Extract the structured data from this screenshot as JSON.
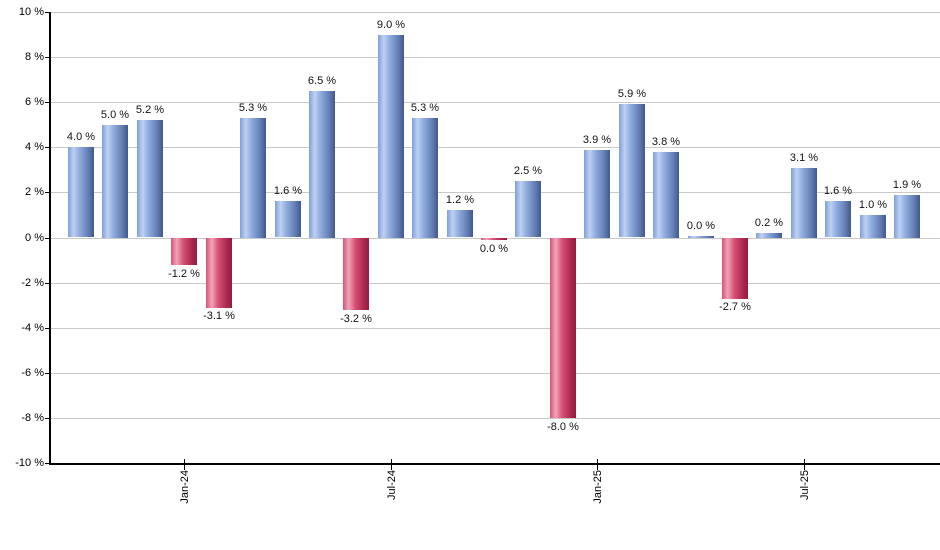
{
  "chart_data": {
    "type": "bar",
    "title": "",
    "xlabel": "",
    "ylabel": "",
    "ylim": [
      -10,
      10
    ],
    "grid": true,
    "legend": "none",
    "values": [
      4.0,
      5.0,
      5.2,
      -1.2,
      -3.1,
      5.3,
      1.6,
      6.5,
      -3.2,
      9.0,
      5.3,
      1.2,
      0.0,
      2.5,
      -8.0,
      3.9,
      5.9,
      3.8,
      0.0,
      -2.7,
      0.2,
      3.1,
      1.6,
      1.0,
      1.9
    ],
    "bar_labels": [
      "4.0 %",
      "5.0 %",
      "5.2 %",
      "-1.2 %",
      "-3.1 %",
      "5.3 %",
      "1.6 %",
      "6.5 %",
      "-3.2 %",
      "9.0 %",
      "5.3 %",
      "1.2 %",
      "0.0 %",
      "2.5 %",
      "-8.0 %",
      "3.9 %",
      "5.9 %",
      "3.8 %",
      "0.0 %",
      "-2.7 %",
      "0.2 %",
      "3.1 %",
      "1.6 %",
      "1.0 %",
      "1.9 %"
    ],
    "bar_colors": [
      "blue",
      "blue",
      "blue",
      "red",
      "red",
      "blue",
      "blue",
      "blue",
      "red",
      "blue",
      "blue",
      "blue",
      "red",
      "blue",
      "red",
      "blue",
      "blue",
      "blue",
      "blue",
      "red",
      "blue",
      "blue",
      "blue",
      "blue",
      "blue"
    ],
    "label_below": [
      false,
      false,
      false,
      true,
      true,
      false,
      false,
      false,
      true,
      false,
      false,
      false,
      true,
      false,
      true,
      false,
      false,
      false,
      false,
      true,
      false,
      false,
      false,
      false,
      false
    ],
    "y_ticks": [
      {
        "label": "10 %",
        "value": 10
      },
      {
        "label": "8 %",
        "value": 8
      },
      {
        "label": "6 %",
        "value": 6
      },
      {
        "label": "4 %",
        "value": 4
      },
      {
        "label": "2 %",
        "value": 2
      },
      {
        "label": "0 %",
        "value": 0
      },
      {
        "label": "-2 %",
        "value": -2
      },
      {
        "label": "-4 %",
        "value": -4
      },
      {
        "label": "-6 %",
        "value": -6
      },
      {
        "label": "-8 %",
        "value": -8
      },
      {
        "label": "-10 %",
        "value": -10
      }
    ],
    "x_ticks": [
      {
        "label": "Jan-24",
        "bar_index": 3
      },
      {
        "label": "Jul-24",
        "bar_index": 9
      },
      {
        "label": "Jan-25",
        "bar_index": 15
      },
      {
        "label": "Jul-25",
        "bar_index": 21
      }
    ],
    "colors": {
      "positive_bar_main": "#7fa0d8",
      "positive_bar_highlight": "#bed1f2",
      "positive_bar_dark": "#41598c",
      "negative_bar_main": "#d75377",
      "negative_bar_highlight": "#f0a3b8",
      "negative_bar_dark": "#8f1d3e",
      "gridline": "#c9c9c9",
      "axis": "#000000",
      "label_text": "#111111"
    }
  }
}
